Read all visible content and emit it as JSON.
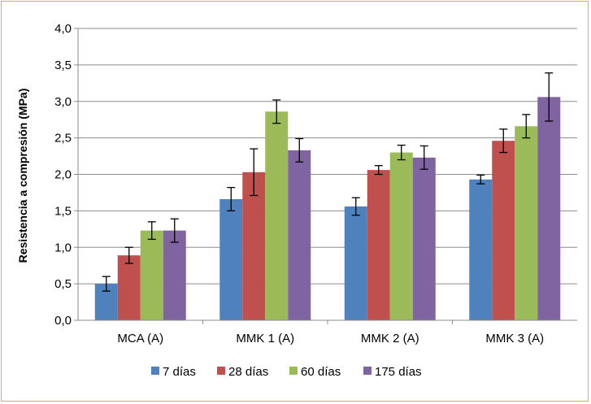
{
  "chart_data": {
    "type": "bar",
    "title": "",
    "xlabel": "",
    "ylabel": "Resistencia a compresión (MPa)",
    "ylim": [
      0,
      4
    ],
    "ytick_labels": [
      "0,0",
      "0,5",
      "1,0",
      "1,5",
      "2,0",
      "2,5",
      "3,0",
      "3,5",
      "4,0"
    ],
    "categories": [
      "MCA (A)",
      "MMK 1 (A)",
      "MMK 2 (A)",
      "MMK 3 (A)"
    ],
    "grid": true,
    "legend_position": "bottom",
    "error_bars": true,
    "series": [
      {
        "name": "7 días",
        "color": "#4f81bd",
        "values": [
          0.5,
          1.66,
          1.56,
          1.93
        ],
        "errors": [
          0.1,
          0.16,
          0.12,
          0.06
        ]
      },
      {
        "name": "28 días",
        "color": "#c0504d",
        "values": [
          0.89,
          2.03,
          2.06,
          2.46
        ],
        "errors": [
          0.11,
          0.32,
          0.06,
          0.16
        ]
      },
      {
        "name": "60 días",
        "color": "#9bbb59",
        "values": [
          1.23,
          2.86,
          2.3,
          2.66
        ],
        "errors": [
          0.12,
          0.16,
          0.1,
          0.16
        ]
      },
      {
        "name": "175 días",
        "color": "#8064a2",
        "values": [
          1.23,
          2.33,
          2.23,
          3.06
        ],
        "errors": [
          0.16,
          0.16,
          0.16,
          0.33
        ]
      }
    ]
  }
}
